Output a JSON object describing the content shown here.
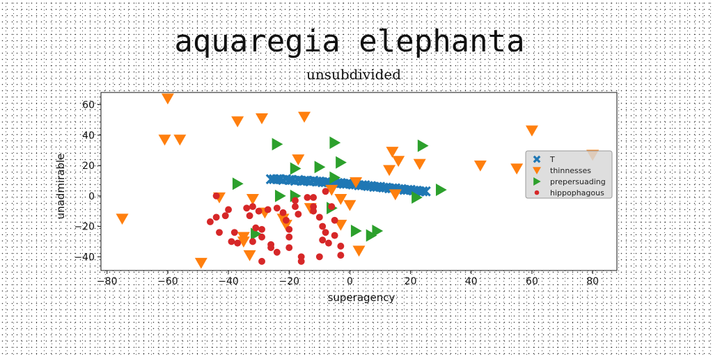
{
  "chart_data": {
    "type": "scatter",
    "title": "aquaregia elephanta",
    "subtitle": "unsubdivided",
    "xlabel": "superagency",
    "ylabel": "unadmirable",
    "xlim": [
      -82,
      88
    ],
    "ylim": [
      -49,
      68
    ],
    "xticks": [
      -80,
      -60,
      -40,
      -20,
      0,
      20,
      40,
      60,
      80
    ],
    "yticks": [
      -40,
      -20,
      0,
      20,
      40,
      60
    ],
    "grid": false,
    "legend_position": "right",
    "series": [
      {
        "name": "T",
        "marker": "x",
        "color": "#1f77b4",
        "points": [
          [
            -26,
            11
          ],
          [
            -25,
            11
          ],
          [
            -24,
            11
          ],
          [
            -23,
            11
          ],
          [
            -22,
            10.5
          ],
          [
            -21,
            11
          ],
          [
            -20,
            10.5
          ],
          [
            -19,
            10.5
          ],
          [
            -18,
            10
          ],
          [
            -17,
            10.5
          ],
          [
            -16,
            10
          ],
          [
            -15,
            10
          ],
          [
            -14,
            10
          ],
          [
            -13,
            9.5
          ],
          [
            -12,
            10
          ],
          [
            -11,
            9.5
          ],
          [
            -10,
            9.5
          ],
          [
            -9,
            9
          ],
          [
            -8,
            9
          ],
          [
            -7,
            9
          ],
          [
            -6,
            8.5
          ],
          [
            -5,
            8.5
          ],
          [
            -4,
            8.5
          ],
          [
            -3,
            8.5
          ],
          [
            -2,
            8
          ],
          [
            -1,
            8
          ],
          [
            0,
            8
          ],
          [
            1,
            7.5
          ],
          [
            2,
            7.5
          ],
          [
            3,
            7
          ],
          [
            4,
            7
          ],
          [
            5,
            7
          ],
          [
            6,
            6.5
          ],
          [
            7,
            6.5
          ],
          [
            8,
            6
          ],
          [
            9,
            6
          ],
          [
            10,
            6
          ],
          [
            11,
            5.5
          ],
          [
            12,
            5.5
          ],
          [
            13,
            5
          ],
          [
            14,
            5
          ],
          [
            15,
            5
          ],
          [
            16,
            4.5
          ],
          [
            17,
            4.5
          ],
          [
            18,
            4
          ],
          [
            19,
            4
          ],
          [
            20,
            4
          ],
          [
            21,
            3.5
          ],
          [
            22,
            3.5
          ],
          [
            23,
            3
          ],
          [
            24,
            3
          ],
          [
            25,
            3
          ]
        ]
      },
      {
        "name": "thinnesses",
        "marker": "triangle-down",
        "color": "#ff7f0e",
        "points": [
          [
            -60,
            64
          ],
          [
            -61,
            37
          ],
          [
            -56,
            37
          ],
          [
            -37,
            49
          ],
          [
            -29,
            51
          ],
          [
            -15,
            52
          ],
          [
            -75,
            -15
          ],
          [
            -49,
            -44
          ],
          [
            -43,
            -1
          ],
          [
            -35,
            -27
          ],
          [
            -33,
            -39
          ],
          [
            -35,
            -30
          ],
          [
            -32,
            -2
          ],
          [
            -28,
            -11
          ],
          [
            -22,
            -15
          ],
          [
            -21,
            -19
          ],
          [
            -17,
            24
          ],
          [
            -13,
            -8
          ],
          [
            -6,
            4
          ],
          [
            -3,
            -2
          ],
          [
            -3,
            -19
          ],
          [
            0,
            -6
          ],
          [
            2,
            9
          ],
          [
            3,
            -36
          ],
          [
            14,
            29
          ],
          [
            13,
            17
          ],
          [
            16,
            23
          ],
          [
            23,
            21
          ],
          [
            15,
            1
          ],
          [
            43,
            20
          ],
          [
            55,
            18
          ],
          [
            60,
            43
          ],
          [
            80,
            27
          ]
        ]
      },
      {
        "name": "prepersuading",
        "marker": "triangle-right",
        "color": "#2ca02c",
        "points": [
          [
            -24,
            34
          ],
          [
            -18,
            18
          ],
          [
            -10,
            19
          ],
          [
            -5,
            35
          ],
          [
            -5,
            12
          ],
          [
            -3,
            22
          ],
          [
            -37,
            8
          ],
          [
            -23,
            0
          ],
          [
            -18,
            0
          ],
          [
            -6,
            -8
          ],
          [
            2,
            -23
          ],
          [
            7,
            -26
          ],
          [
            9,
            -23
          ],
          [
            -31,
            -25
          ],
          [
            22,
            -1
          ],
          [
            24,
            33
          ],
          [
            30,
            4
          ]
        ]
      },
      {
        "name": "hippophagous",
        "marker": "circle",
        "color": "#d62728",
        "points": [
          [
            -44,
            0
          ],
          [
            -46,
            -17
          ],
          [
            -44,
            -14
          ],
          [
            -43,
            -24
          ],
          [
            -38,
            -24
          ],
          [
            -39,
            -30
          ],
          [
            -37,
            -31
          ],
          [
            -40,
            -9
          ],
          [
            -41,
            -13
          ],
          [
            -34,
            -8
          ],
          [
            -32,
            -7
          ],
          [
            -33,
            -13
          ],
          [
            -32,
            -30
          ],
          [
            -30,
            -10
          ],
          [
            -29,
            -22
          ],
          [
            -29,
            -27
          ],
          [
            -29,
            -43
          ],
          [
            -27,
            -9
          ],
          [
            -26,
            -32
          ],
          [
            -24,
            -37
          ],
          [
            -24,
            -8
          ],
          [
            -22,
            -11
          ],
          [
            -21,
            -16
          ],
          [
            -20,
            -22
          ],
          [
            -20,
            -27
          ],
          [
            -20,
            -34
          ],
          [
            -18,
            -7
          ],
          [
            -18,
            -3
          ],
          [
            -17,
            -12
          ],
          [
            -16,
            -40
          ],
          [
            -16,
            -43
          ],
          [
            -14,
            -1
          ],
          [
            -12,
            -1
          ],
          [
            -12,
            -7
          ],
          [
            -10,
            -40
          ],
          [
            -9,
            -20
          ],
          [
            -9,
            -29
          ],
          [
            -8,
            -24
          ],
          [
            -7,
            -31
          ],
          [
            -6,
            -7
          ],
          [
            -5,
            -26
          ],
          [
            -5,
            -16
          ],
          [
            -3,
            -33
          ],
          [
            -3,
            -39
          ],
          [
            -8,
            3
          ],
          [
            -10,
            -14
          ],
          [
            -12,
            -10
          ],
          [
            -26,
            -34
          ],
          [
            -31,
            -21
          ]
        ]
      }
    ]
  }
}
